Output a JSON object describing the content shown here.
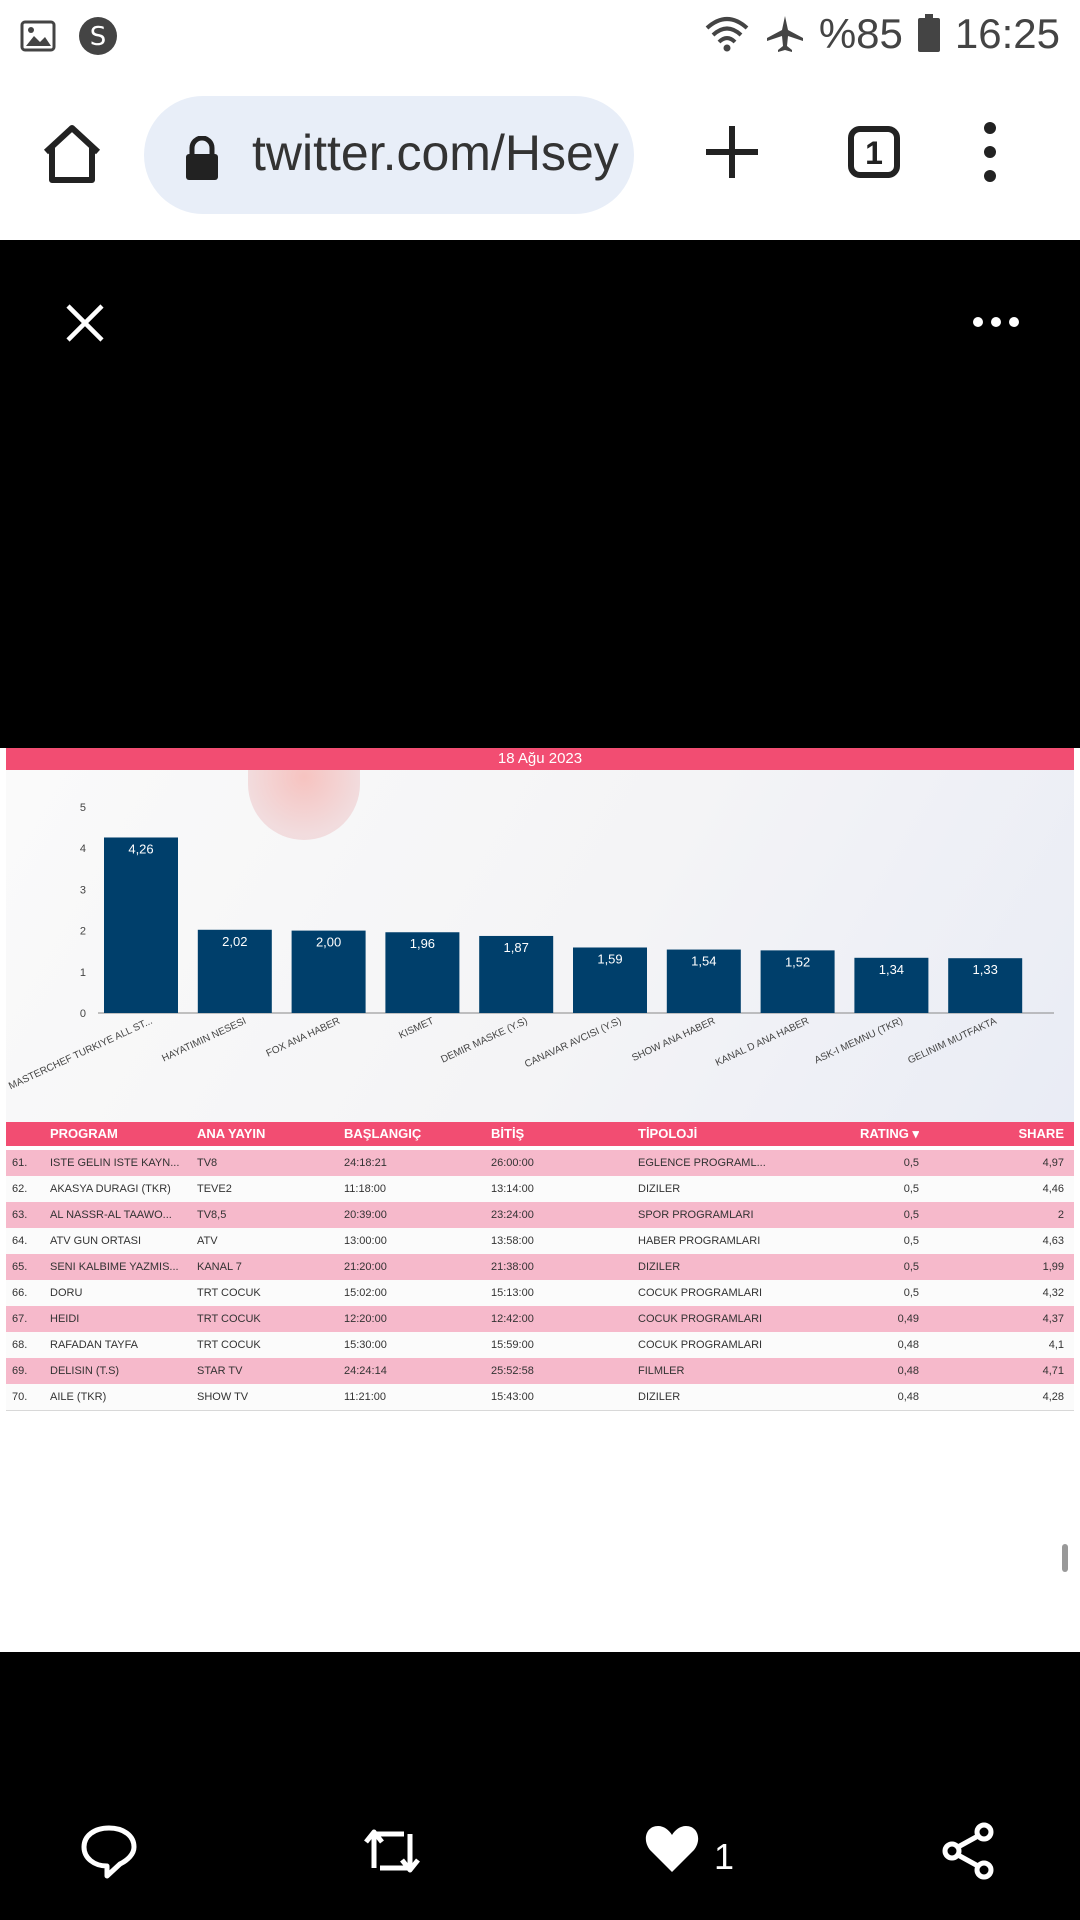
{
  "status_bar": {
    "battery": "%85",
    "time": "16:25",
    "icons": [
      "gallery-icon",
      "app-s-icon",
      "wifi-icon",
      "airplane-icon",
      "battery-icon"
    ]
  },
  "browser": {
    "url": "twitter.com/Hsey",
    "tab_count": "1"
  },
  "viewer": {
    "like_count": "1"
  },
  "image": {
    "date": "18 Ağu 2023",
    "table": {
      "headers": [
        "PROGRAM",
        "ANA YAYIN",
        "BAŞLANGIÇ",
        "BİTİŞ",
        "TİPOLOJİ",
        "RATING ▾",
        "SHARE"
      ],
      "rows": [
        {
          "idx": "61.",
          "program": "ISTE GELIN ISTE KAYN...",
          "ana": "TV8",
          "bas": "24:18:21",
          "bit": "26:00:00",
          "tip": "EGLENCE PROGRAML...",
          "rating": "0,5",
          "share": "4,97"
        },
        {
          "idx": "62.",
          "program": "AKASYA DURAGI (TKR)",
          "ana": "TEVE2",
          "bas": "11:18:00",
          "bit": "13:14:00",
          "tip": "DIZILER",
          "rating": "0,5",
          "share": "4,46"
        },
        {
          "idx": "63.",
          "program": "AL NASSR-AL TAAWO...",
          "ana": "TV8,5",
          "bas": "20:39:00",
          "bit": "23:24:00",
          "tip": "SPOR PROGRAMLARI",
          "rating": "0,5",
          "share": "2"
        },
        {
          "idx": "64.",
          "program": "ATV GUN ORTASI",
          "ana": "ATV",
          "bas": "13:00:00",
          "bit": "13:58:00",
          "tip": "HABER PROGRAMLARI",
          "rating": "0,5",
          "share": "4,63"
        },
        {
          "idx": "65.",
          "program": "SENI KALBIME YAZMIS...",
          "ana": "KANAL 7",
          "bas": "21:20:00",
          "bit": "21:38:00",
          "tip": "DIZILER",
          "rating": "0,5",
          "share": "1,99"
        },
        {
          "idx": "66.",
          "program": "DORU",
          "ana": "TRT COCUK",
          "bas": "15:02:00",
          "bit": "15:13:00",
          "tip": "COCUK PROGRAMLARI",
          "rating": "0,5",
          "share": "4,32"
        },
        {
          "idx": "67.",
          "program": "HEIDI",
          "ana": "TRT COCUK",
          "bas": "12:20:00",
          "bit": "12:42:00",
          "tip": "COCUK PROGRAMLARI",
          "rating": "0,49",
          "share": "4,37"
        },
        {
          "idx": "68.",
          "program": "RAFADAN TAYFA",
          "ana": "TRT COCUK",
          "bas": "15:30:00",
          "bit": "15:59:00",
          "tip": "COCUK PROGRAMLARI",
          "rating": "0,48",
          "share": "4,1"
        },
        {
          "idx": "69.",
          "program": "DELISIN (T.S)",
          "ana": "STAR TV",
          "bas": "24:24:14",
          "bit": "25:52:58",
          "tip": "FILMLER",
          "rating": "0,48",
          "share": "4,71"
        },
        {
          "idx": "70.",
          "program": "AILE (TKR)",
          "ana": "SHOW TV",
          "bas": "11:21:00",
          "bit": "15:43:00",
          "tip": "DIZILER",
          "rating": "0,48",
          "share": "4,28"
        }
      ]
    }
  },
  "chart_data": {
    "type": "bar",
    "categories": [
      "MASTERCHEF TURKIYE ALL ST...",
      "HAYATIMIN NESESI",
      "FOX ANA HABER",
      "KISMET",
      "DEMIR MASKE (Y.S)",
      "CANAVAR AVCISI (Y.S)",
      "SHOW ANA HABER",
      "KANAL D ANA HABER",
      "ASK-I MEMNU (TKR)",
      "GELINIM MUTFAKTA"
    ],
    "values": [
      4.26,
      2.02,
      2.0,
      1.96,
      1.87,
      1.59,
      1.54,
      1.52,
      1.34,
      1.33
    ],
    "value_labels": [
      "4,26",
      "2,02",
      "2,00",
      "1,96",
      "1,87",
      "1,59",
      "1,54",
      "1,52",
      "1,34",
      "1,33"
    ],
    "ylim": [
      0,
      5
    ],
    "yticks": [
      "0",
      "1",
      "2",
      "3",
      "4",
      "5"
    ],
    "bar_color": "#003f6b",
    "grid": false
  }
}
